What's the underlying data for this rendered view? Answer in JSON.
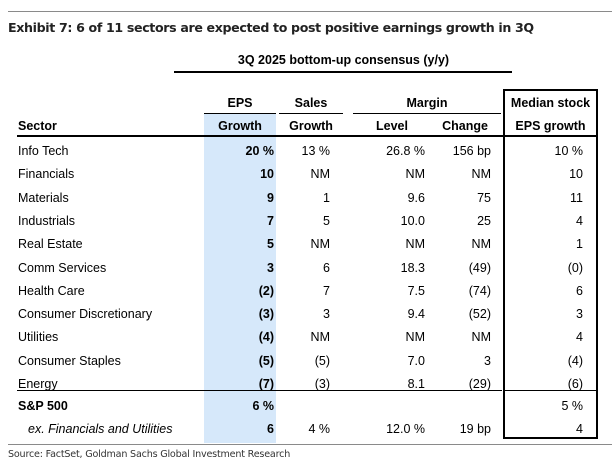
{
  "exhibit": {
    "title": "Exhibit 7: 6 of 11 sectors are expected to post positive earnings growth in 3Q",
    "super_header": "3Q 2025 bottom-up consensus (y/y)",
    "source": "Source: FactSet, Goldman Sachs Global Investment Research",
    "highlight_color": "#d6e8fa"
  },
  "headers": {
    "sector": "Sector",
    "eps_top": "EPS",
    "eps_bottom": "Growth",
    "sales_top": "Sales",
    "sales_bottom": "Growth",
    "margin_top": "Margin",
    "margin_level": "Level",
    "margin_change": "Change",
    "median_top": "Median stock",
    "median_bottom": "EPS growth"
  },
  "rows": [
    {
      "sector": "Info Tech",
      "eps": "20 %",
      "sales": "13 %",
      "level": "26.8 %",
      "change": "156 bp",
      "median": "10 %"
    },
    {
      "sector": "Financials",
      "eps": "10",
      "sales": "NM",
      "level": "NM",
      "change": "NM",
      "median": "10"
    },
    {
      "sector": "Materials",
      "eps": "9",
      "sales": "1",
      "level": "9.6",
      "change": "75",
      "median": "11"
    },
    {
      "sector": "Industrials",
      "eps": "7",
      "sales": "5",
      "level": "10.0",
      "change": "25",
      "median": "4"
    },
    {
      "sector": "Real Estate",
      "eps": "5",
      "sales": "NM",
      "level": "NM",
      "change": "NM",
      "median": "1"
    },
    {
      "sector": "Comm Services",
      "eps": "3",
      "sales": "6",
      "level": "18.3",
      "change": "(49)",
      "median": "(0)"
    },
    {
      "sector": "Health Care",
      "eps": "(2)",
      "sales": "7",
      "level": "7.5",
      "change": "(74)",
      "median": "6"
    },
    {
      "sector": "Consumer Discretionary",
      "eps": "(3)",
      "sales": "3",
      "level": "9.4",
      "change": "(52)",
      "median": "3"
    },
    {
      "sector": "Utilities",
      "eps": "(4)",
      "sales": "NM",
      "level": "NM",
      "change": "NM",
      "median": "4"
    },
    {
      "sector": "Consumer Staples",
      "eps": "(5)",
      "sales": "(5)",
      "level": "7.0",
      "change": "3",
      "median": "(4)"
    },
    {
      "sector": "Energy",
      "eps": "(7)",
      "sales": "(3)",
      "level": "8.1",
      "change": "(29)",
      "median": "(6)"
    }
  ],
  "totals": [
    {
      "sector": "S&P 500",
      "eps": "6 %",
      "sales": "",
      "level": "",
      "change": "",
      "median": "5 %"
    },
    {
      "sector": "ex. Financials and Utilities",
      "eps": "6",
      "sales": "4 %",
      "level": "12.0 %",
      "change": "19 bp",
      "median": "4"
    }
  ]
}
